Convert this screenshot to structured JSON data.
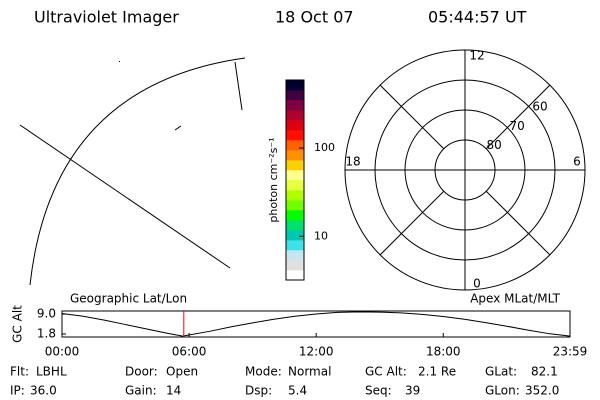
{
  "header": {
    "title": "Ultraviolet Imager",
    "date": "18 Oct 07",
    "time": "05:44:57 UT"
  },
  "colorbar": {
    "label": "photon cm⁻²s⁻¹",
    "log": true,
    "clim": [
      3.2,
      590
    ],
    "ticks": [
      10,
      100
    ],
    "colors": [
      "#ffffff",
      "#e0e0e0",
      "#c8e4f0",
      "#40e0e8",
      "#00c8b0",
      "#00e070",
      "#00ff00",
      "#70ff00",
      "#b0ff00",
      "#e8ff40",
      "#ffff90",
      "#ffd000",
      "#ff9000",
      "#ff6000",
      "#ff1000",
      "#e00010",
      "#b00030",
      "#800040",
      "#400040",
      "#000030"
    ]
  },
  "polar": {
    "rlim": [
      90,
      50
    ],
    "rings": [
      80,
      70,
      60
    ],
    "mlt_ticks": [
      12,
      18,
      6,
      0
    ]
  },
  "chart_data": {
    "type": "line",
    "ylabel": "GC Alt",
    "left_label": "Geographic Lat/Lon",
    "right_label": "Apex MLat/MLT",
    "x": [
      0,
      1,
      2,
      3,
      4,
      5,
      5.7,
      7,
      8,
      9,
      10,
      11,
      12,
      13,
      14,
      15,
      16,
      17,
      18,
      19,
      20,
      21,
      22,
      23,
      23.983
    ],
    "series": [
      {
        "name": "GC Alt",
        "color": "#000000",
        "values": [
          9.2,
          8.2,
          6.8,
          5.2,
          3.6,
          2.0,
          1.0,
          2.8,
          4.4,
          5.8,
          7.1,
          8.2,
          9.0,
          9.6,
          9.8,
          9.7,
          9.4,
          8.9,
          8.1,
          7.1,
          5.9,
          4.6,
          3.2,
          1.9,
          1.0
        ]
      }
    ],
    "marker": {
      "x": 5.75,
      "color": "#ff0000"
    },
    "xlim": [
      0,
      23.983
    ],
    "ylim": [
      0.7,
      10.1
    ],
    "xticks": [
      {
        "value": 0,
        "label": "00:00"
      },
      {
        "value": 6,
        "label": "06:00"
      },
      {
        "value": 12,
        "label": "12:00"
      },
      {
        "value": 18,
        "label": "18:00"
      },
      {
        "value": 23.983,
        "label": "23:59"
      }
    ],
    "yticks": [
      {
        "value": 9.0,
        "label": "9.0"
      },
      {
        "value": 1.8,
        "label": "1.8"
      }
    ]
  },
  "info": [
    [
      {
        "label": "Flt:",
        "value": "LBHL"
      },
      {
        "label": "Door:",
        "value": "Open"
      },
      {
        "label": "Mode:",
        "value": "Normal"
      },
      {
        "label": "GC Alt:",
        "value": "2.1 Re"
      },
      {
        "label": "GLat:",
        "value": "82.1"
      }
    ],
    [
      {
        "label": "IP:",
        "value": "36.0"
      },
      {
        "label": "Gain:",
        "value": "14"
      },
      {
        "label": "Dsp:",
        "value": "5.4"
      },
      {
        "label": "Seq:",
        "value": "39"
      },
      {
        "label": "GLon:",
        "value": "352.0"
      }
    ]
  ]
}
